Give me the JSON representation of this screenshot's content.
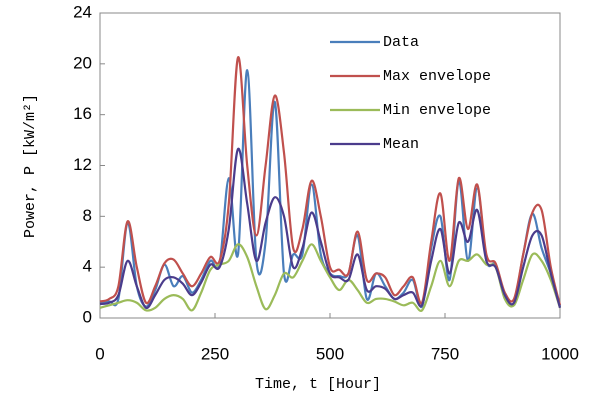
{
  "chart_data": {
    "type": "line",
    "xlabel": "Time, t [Hour]",
    "ylabel": "Power, P [kW/m²]",
    "x": [
      0,
      20,
      40,
      60,
      80,
      100,
      120,
      140,
      160,
      180,
      200,
      220,
      240,
      260,
      280,
      300,
      320,
      340,
      360,
      380,
      400,
      420,
      440,
      460,
      480,
      500,
      520,
      540,
      560,
      580,
      600,
      620,
      640,
      660,
      680,
      700,
      720,
      740,
      760,
      780,
      800,
      820,
      840,
      860,
      880,
      900,
      920,
      940,
      960,
      980,
      1000
    ],
    "series": [
      {
        "name": "Data",
        "color": "#4a7ebb",
        "values": [
          1.2,
          1.3,
          1.5,
          7.5,
          2.5,
          0.9,
          2.2,
          4.2,
          2.5,
          3.3,
          2.0,
          3.0,
          4.5,
          4.3,
          11,
          5,
          19.5,
          4.5,
          6,
          17,
          3.5,
          5,
          5,
          10.5,
          5,
          3.5,
          3.3,
          3.5,
          6.5,
          1.5,
          3.5,
          2.5,
          1.5,
          2.0,
          3.0,
          0.9,
          5.5,
          8.0,
          3.0,
          10.8,
          4.5,
          10.2,
          4.5,
          4.2,
          1.8,
          1.2,
          5.0,
          8.2,
          5.5,
          3.5,
          0.9
        ]
      },
      {
        "name": "Max envelope",
        "color": "#c0504d",
        "values": [
          1.3,
          1.5,
          2.5,
          7.6,
          4,
          1.2,
          2.5,
          4.3,
          4.6,
          3.5,
          2.5,
          3.5,
          4.8,
          4.5,
          9,
          20.5,
          12,
          6.5,
          12,
          17.5,
          13,
          5.5,
          7,
          10.8,
          8,
          4,
          3.8,
          3.5,
          6.8,
          3,
          3.5,
          3.2,
          1.8,
          2.5,
          3.2,
          1.2,
          6,
          9.8,
          4.5,
          11,
          7,
          10.5,
          5,
          4.3,
          2,
          1.5,
          5,
          8.3,
          8.5,
          4,
          1
        ]
      },
      {
        "name": "Min envelope",
        "color": "#9bbb59",
        "values": [
          0.8,
          1.0,
          1.2,
          1.4,
          1.2,
          0.6,
          0.8,
          1.5,
          1.8,
          1.5,
          0.6,
          2.0,
          3.8,
          4.2,
          4.5,
          5.8,
          4.8,
          2.5,
          0.7,
          1.8,
          3.5,
          3.2,
          4.5,
          5.8,
          4.5,
          3.2,
          2.2,
          3.0,
          2.2,
          1.2,
          1.5,
          1.5,
          1.3,
          1.0,
          1.2,
          0.6,
          2.5,
          4.5,
          2.5,
          4.5,
          4.5,
          5.0,
          4.2,
          4.0,
          1.5,
          1.0,
          3.0,
          5.0,
          4.5,
          3.0,
          0.8
        ]
      },
      {
        "name": "Mean",
        "color": "#4b3c8c",
        "values": [
          1.1,
          1.2,
          1.8,
          4.5,
          2.5,
          0.8,
          1.8,
          3,
          3.2,
          2.7,
          1.8,
          2.8,
          4.2,
          4,
          7,
          13.3,
          9,
          4.5,
          7.5,
          9.5,
          8,
          4,
          5.5,
          8.3,
          6,
          3.5,
          3.2,
          3,
          5,
          2.2,
          2.5,
          2.3,
          1.5,
          1.8,
          2,
          1,
          4.5,
          7,
          3.5,
          7.5,
          6,
          8.5,
          4.5,
          4,
          1.8,
          1.2,
          4,
          6.5,
          6.5,
          3.5,
          0.8
        ]
      }
    ],
    "xlim": [
      0,
      1000
    ],
    "xticks": [
      0,
      250,
      500,
      750,
      1000
    ],
    "ylim": [
      0,
      24
    ],
    "yticks": [
      0,
      4,
      8,
      12,
      16,
      20,
      24
    ],
    "legend": "upper right"
  }
}
